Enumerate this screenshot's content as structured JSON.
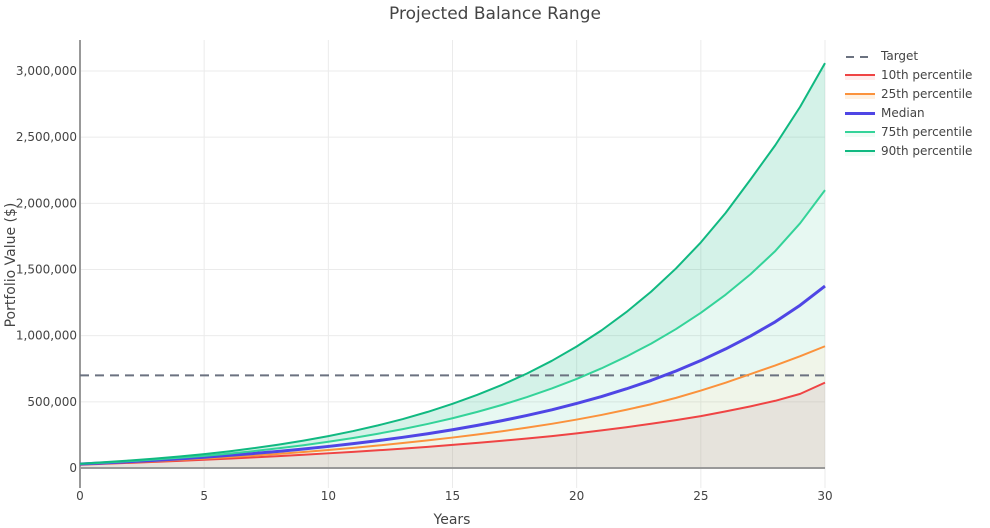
{
  "chart_data": {
    "type": "line",
    "title": "Projected Balance Range",
    "xlabel": "Years",
    "ylabel": "Portfolio Value ($)",
    "xlim": [
      0,
      30
    ],
    "ylim": [
      -150000,
      3250000
    ],
    "x_ticks": [
      0,
      5,
      10,
      15,
      20,
      25,
      30
    ],
    "y_ticks": [
      0,
      500000,
      1000000,
      1500000,
      2000000,
      2500000,
      3000000
    ],
    "y_tick_labels": [
      "0",
      "500,000",
      "1,000,000",
      "1,500,000",
      "2,000,000",
      "2,500,000",
      "3,000,000"
    ],
    "grid": true,
    "legend_position": "right",
    "x": [
      0,
      1,
      2,
      3,
      4,
      5,
      6,
      7,
      8,
      9,
      10,
      11,
      12,
      13,
      14,
      15,
      16,
      17,
      18,
      19,
      20,
      21,
      22,
      23,
      24,
      25,
      26,
      27,
      28,
      29,
      30
    ],
    "series": [
      {
        "name": "Target",
        "color": "#6b7280",
        "dash": true,
        "fill": false,
        "values": [
          700000,
          700000,
          700000,
          700000,
          700000,
          700000,
          700000,
          700000,
          700000,
          700000,
          700000,
          700000,
          700000,
          700000,
          700000,
          700000,
          700000,
          700000,
          700000,
          700000,
          700000,
          700000,
          700000,
          700000,
          700000,
          700000,
          700000,
          700000,
          700000,
          700000,
          700000
        ]
      },
      {
        "name": "10th percentile",
        "color": "#ef4444",
        "fill_color": "rgba(180,170,150,0.33)",
        "values": [
          25000,
          32000,
          39000,
          46000,
          54000,
          62000,
          71000,
          80000,
          90000,
          100000,
          111000,
          122000,
          134000,
          146000,
          160000,
          175000,
          190000,
          206000,
          223000,
          241000,
          262000,
          284000,
          308000,
          334000,
          362000,
          392000,
          428000,
          466000,
          508000,
          560000,
          645000
        ]
      },
      {
        "name": "25th percentile",
        "color": "#fb923c",
        "fill_color": "rgba(160,190,120,0.16)",
        "values": [
          28000,
          36000,
          44000,
          52000,
          61000,
          71000,
          82000,
          94000,
          107000,
          121000,
          136000,
          152000,
          170000,
          189000,
          209000,
          230000,
          253000,
          278000,
          305000,
          334000,
          366000,
          401000,
          440000,
          482000,
          530000,
          585000,
          645000,
          710000,
          775000,
          845000,
          920000
        ]
      },
      {
        "name": "Median",
        "color": "#4f46e5",
        "fill_color": "rgba(16,185,129,0.10)",
        "values": [
          30000,
          39000,
          48000,
          58000,
          69000,
          81000,
          95000,
          110000,
          126000,
          144000,
          163000,
          184000,
          207000,
          232000,
          259000,
          289000,
          322000,
          358000,
          397000,
          440000,
          488000,
          540000,
          598000,
          662000,
          733000,
          812000,
          900000,
          997000,
          1105000,
          1230000,
          1375000
        ]
      },
      {
        "name": "75th percentile",
        "color": "#34d399",
        "fill_color": "rgba(16,185,129,0.10)",
        "values": [
          31000,
          41000,
          52000,
          64000,
          77000,
          92000,
          109000,
          128000,
          149000,
          172000,
          198000,
          227000,
          259000,
          294000,
          333000,
          376000,
          424000,
          477000,
          536000,
          601000,
          673000,
          753000,
          842000,
          940000,
          1050000,
          1173000,
          1310000,
          1464000,
          1640000,
          1850000,
          2100000
        ]
      },
      {
        "name": "90th percentile",
        "color": "#10b981",
        "fill_color": "rgba(16,185,129,0.18)",
        "values": [
          32000,
          44000,
          57000,
          71000,
          87000,
          105000,
          126000,
          150000,
          177000,
          207000,
          241000,
          279000,
          322000,
          370000,
          424000,
          485000,
          553000,
          629000,
          714000,
          810000,
          918000,
          1040000,
          1178000,
          1333000,
          1508000,
          1705000,
          1928000,
          2180000,
          2440000,
          2730000,
          3060000
        ]
      }
    ]
  },
  "legend": {
    "items": [
      {
        "label": "Target",
        "color": "#6b7280",
        "style": "dash"
      },
      {
        "label": "10th percentile",
        "color": "#ef4444",
        "style": "solid"
      },
      {
        "label": "25th percentile",
        "color": "#fb923c",
        "style": "solid"
      },
      {
        "label": "Median",
        "color": "#4f46e5",
        "style": "thick"
      },
      {
        "label": "75th percentile",
        "color": "#34d399",
        "style": "solid"
      },
      {
        "label": "90th percentile",
        "color": "#10b981",
        "style": "solid"
      }
    ]
  }
}
